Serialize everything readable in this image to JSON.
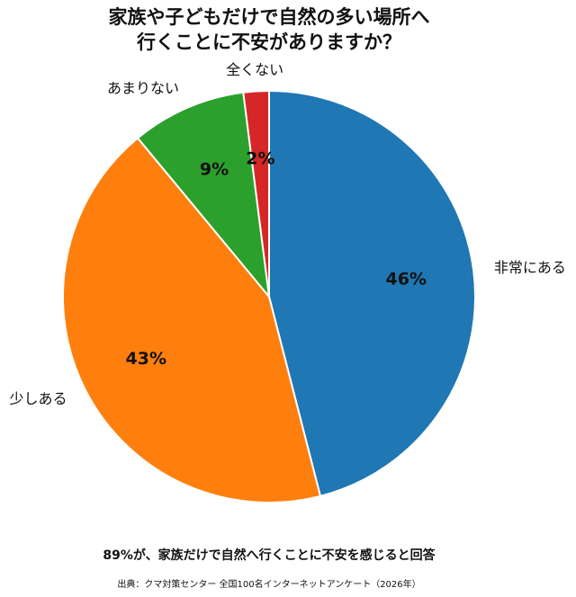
{
  "chart_data": {
    "type": "pie",
    "title": [
      "家族や子どもだけで自然の多い場所へ",
      "行くことに不安がありますか？"
    ],
    "categories": [
      "非常にある",
      "少しある",
      "あまりない",
      "全くない"
    ],
    "values": [
      46,
      43,
      9,
      2
    ],
    "value_labels": [
      "46%",
      "43%",
      "9%",
      "2%"
    ],
    "colors": [
      "#1f77b4",
      "#ff7f0e",
      "#2ca02c",
      "#d62728"
    ],
    "annotation": "89%が、家族だけで自然へ行くことに不安を感じると回答",
    "source": "出典：クマ対策センター 全国100名インターネットアンケート（2026年）"
  }
}
